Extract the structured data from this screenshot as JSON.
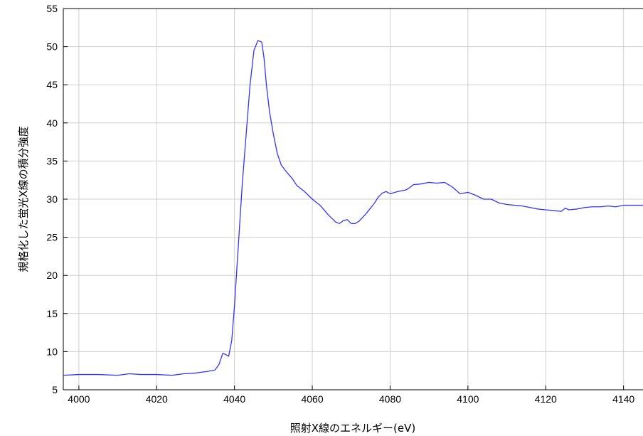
{
  "chart_data": {
    "type": "line",
    "title": "",
    "xlabel": "照射X線のエネルギー(eV)",
    "ylabel": "規格化した蛍光X線の積分強度",
    "xlim": [
      3996,
      4145
    ],
    "ylim": [
      5,
      55
    ],
    "grid": true,
    "xticks": [
      4000,
      4020,
      4040,
      4060,
      4080,
      4100,
      4120,
      4140
    ],
    "yticks": [
      5,
      10,
      15,
      20,
      25,
      30,
      35,
      40,
      45,
      50,
      55
    ],
    "line_color": "#3333ff",
    "series": [
      {
        "x": [
          3996,
          4000,
          4005,
          4010,
          4013,
          4016,
          4020,
          4024,
          4027,
          4030,
          4033,
          4035,
          4036,
          4037,
          4037.8,
          4038.5,
          4039.3,
          4040,
          4041,
          4042,
          4043,
          4044,
          4045,
          4046,
          4047,
          4047.6,
          4048.2,
          4049,
          4050,
          4051,
          4052,
          4053,
          4054,
          4055,
          4056,
          4057,
          4058,
          4059,
          4060,
          4062,
          4064,
          4066,
          4067,
          4068,
          4069,
          4070,
          4071,
          4072,
          4074,
          4076,
          4077,
          4078,
          4079,
          4080,
          4082,
          4084,
          4085,
          4086,
          4088,
          4090,
          4092,
          4094,
          4096,
          4098,
          4100,
          4102,
          4104,
          4106,
          4108,
          4110,
          4112,
          4114,
          4116,
          4118,
          4120,
          4122,
          4124,
          4125,
          4126,
          4128,
          4130,
          4132,
          4134,
          4136,
          4138,
          4140,
          4142,
          4145
        ],
        "y": [
          6.9,
          7.0,
          7.0,
          6.9,
          7.1,
          7.0,
          7.0,
          6.9,
          7.1,
          7.2,
          7.4,
          7.6,
          8.3,
          9.8,
          9.6,
          9.4,
          11.5,
          16.0,
          24.0,
          32.0,
          38.5,
          45.0,
          49.5,
          50.8,
          50.6,
          48.5,
          45.0,
          41.5,
          38.5,
          36.0,
          34.5,
          33.8,
          33.2,
          32.6,
          31.8,
          31.4,
          31.0,
          30.5,
          30.0,
          29.2,
          28.0,
          27.0,
          26.8,
          27.2,
          27.3,
          26.8,
          26.8,
          27.1,
          28.2,
          29.5,
          30.3,
          30.8,
          31.0,
          30.7,
          31.0,
          31.2,
          31.5,
          31.9,
          32.0,
          32.2,
          32.1,
          32.2,
          31.6,
          30.7,
          30.9,
          30.5,
          30.0,
          30.0,
          29.5,
          29.3,
          29.2,
          29.1,
          28.9,
          28.7,
          28.6,
          28.5,
          28.4,
          28.8,
          28.6,
          28.7,
          28.9,
          29.0,
          29.0,
          29.1,
          29.0,
          29.2,
          29.2,
          29.2
        ]
      }
    ]
  }
}
